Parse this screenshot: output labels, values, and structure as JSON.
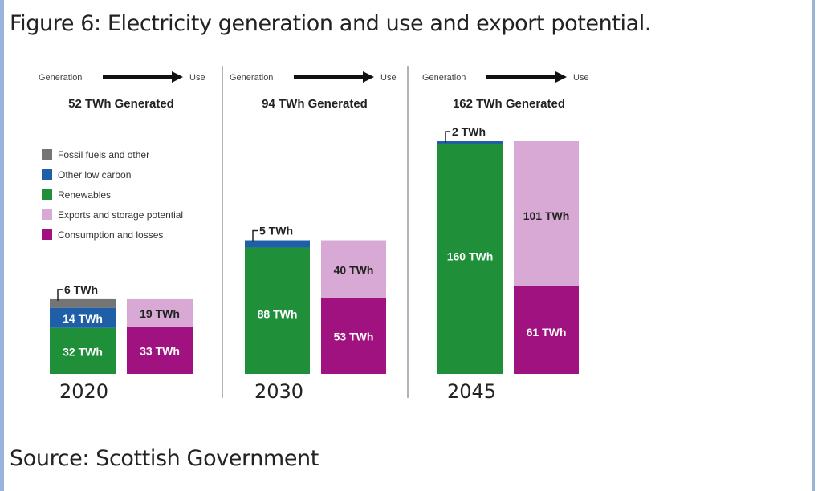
{
  "figure": {
    "caption": "Figure 6: Electricity generation and use and export potential.",
    "source": "Source: Scottish Government"
  },
  "chart_data": {
    "type": "bar",
    "flow_generation_label": "Generation",
    "flow_use_label": "Use",
    "legend": [
      {
        "name": "Fossil fuels and other",
        "color": "#757575"
      },
      {
        "name": "Other low carbon",
        "color": "#1f5fa8"
      },
      {
        "name": "Renewables",
        "color": "#1f8f3a"
      },
      {
        "name": "Exports and storage potential",
        "color": "#d7a9d4"
      },
      {
        "name": "Consumption and losses",
        "color": "#a0127f"
      }
    ],
    "panels": [
      {
        "year": "2020",
        "headline": "52 TWh Generated",
        "generation": {
          "Fossil fuels and other": 6,
          "Other low carbon": 14,
          "Renewables": 32
        },
        "use": {
          "Consumption and losses": 33,
          "Exports and storage potential": 19
        },
        "labels": {
          "fossil": "6 TWh",
          "low_carbon": "14 TWh",
          "renewables": "32 TWh",
          "consumption": "33 TWh",
          "exports": "19 TWh"
        }
      },
      {
        "year": "2030",
        "headline": "94 TWh Generated",
        "generation": {
          "Fossil fuels and other": 0,
          "Other low carbon": 5,
          "Renewables": 88
        },
        "use": {
          "Consumption and losses": 53,
          "Exports and storage potential": 40
        },
        "labels": {
          "low_carbon": "5 TWh",
          "renewables": "88 TWh",
          "consumption": "53 TWh",
          "exports": "40 TWh"
        }
      },
      {
        "year": "2045",
        "headline": "162 TWh Generated",
        "generation": {
          "Fossil fuels and other": 0,
          "Other low carbon": 2,
          "Renewables": 160
        },
        "use": {
          "Consumption and losses": 61,
          "Exports and storage potential": 101
        },
        "labels": {
          "low_carbon": "2 TWh",
          "renewables": "160 TWh",
          "consumption": "61 TWh",
          "exports": "101 TWh"
        }
      }
    ]
  }
}
